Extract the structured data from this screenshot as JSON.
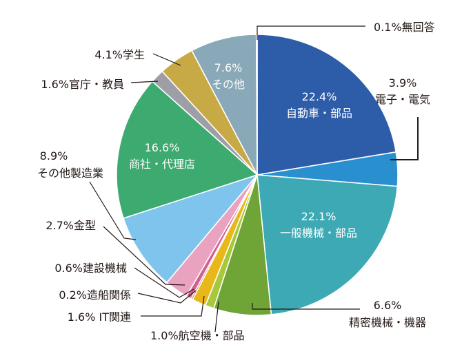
{
  "chart_data": {
    "type": "pie",
    "start_angle_deg": 0,
    "direction": "clockwise",
    "slices": [
      {
        "label": "自動車・部品",
        "pct_text": "22.4%",
        "value": 22.4,
        "color": "#2d5ca8"
      },
      {
        "label": "電子・電気",
        "pct_text": "3.9%",
        "value": 3.9,
        "color": "#2a8fcf"
      },
      {
        "label": "一般機械・部品",
        "pct_text": "22.1%",
        "value": 22.1,
        "color": "#3ca9b5"
      },
      {
        "label": "精密機械・機器",
        "pct_text": "6.6%",
        "value": 6.6,
        "color": "#6fa436"
      },
      {
        "label": "航空機・部品",
        "pct_text": "1.0%",
        "value": 1.0,
        "color": "#a7c83a"
      },
      {
        "label": "IT関連",
        "pct_text": "1.6%",
        "value": 1.6,
        "color": "#e8b81a"
      },
      {
        "label": "造船関係",
        "pct_text": "0.2%",
        "value": 0.2,
        "color": "#c44d3f"
      },
      {
        "label": "建設機械",
        "pct_text": "0.6%",
        "value": 0.6,
        "color": "#d4608d"
      },
      {
        "label": "金型",
        "pct_text": "2.7%",
        "value": 2.7,
        "color": "#e9a3c0"
      },
      {
        "label": "その他製造業",
        "pct_text": "8.9%",
        "value": 8.9,
        "color": "#7fc4ec"
      },
      {
        "label": "商社・代理店",
        "pct_text": "16.6%",
        "value": 16.6,
        "color": "#3daa70"
      },
      {
        "label": "官庁・教員",
        "pct_text": "1.6%",
        "value": 1.6,
        "color": "#9d9ea6"
      },
      {
        "label": "学生",
        "pct_text": "4.1%",
        "value": 4.1,
        "color": "#c7aa45"
      },
      {
        "label": "その他",
        "pct_text": "7.6%",
        "value": 7.6,
        "color": "#8aa9b8"
      },
      {
        "label": "無回答",
        "pct_text": "0.1%",
        "value": 0.1,
        "color": "#d7d7d7"
      }
    ],
    "inside_labels": [
      {
        "slice": 0,
        "pct": "22.4%",
        "name": "自動車・部品"
      },
      {
        "slice": 2,
        "pct": "22.1%",
        "name": "一般機械・部品"
      },
      {
        "slice": 10,
        "pct": "16.6%",
        "name": "商社・代理店"
      },
      {
        "slice": 13,
        "pct": "7.6%",
        "name": "その他"
      }
    ],
    "outside_labels": [
      {
        "slice": 14,
        "lines": [
          "0.1%無回答"
        ]
      },
      {
        "slice": 1,
        "lines": [
          "3.9%",
          "電子・電気"
        ]
      },
      {
        "slice": 3,
        "lines": [
          "6.6%",
          "精密機械・機器"
        ]
      },
      {
        "slice": 4,
        "lines": [
          "1.0%航空機・部品"
        ]
      },
      {
        "slice": 5,
        "lines": [
          "1.6% IT関連"
        ]
      },
      {
        "slice": 6,
        "lines": [
          "0.2%造船関係"
        ]
      },
      {
        "slice": 7,
        "lines": [
          "0.6%建設機械"
        ]
      },
      {
        "slice": 8,
        "lines": [
          "2.7%金型"
        ]
      },
      {
        "slice": 9,
        "lines": [
          "8.9%",
          "その他製造業"
        ]
      },
      {
        "slice": 11,
        "lines": [
          "1.6%官庁・教員"
        ]
      },
      {
        "slice": 12,
        "lines": [
          "4.1%学生"
        ]
      }
    ]
  }
}
